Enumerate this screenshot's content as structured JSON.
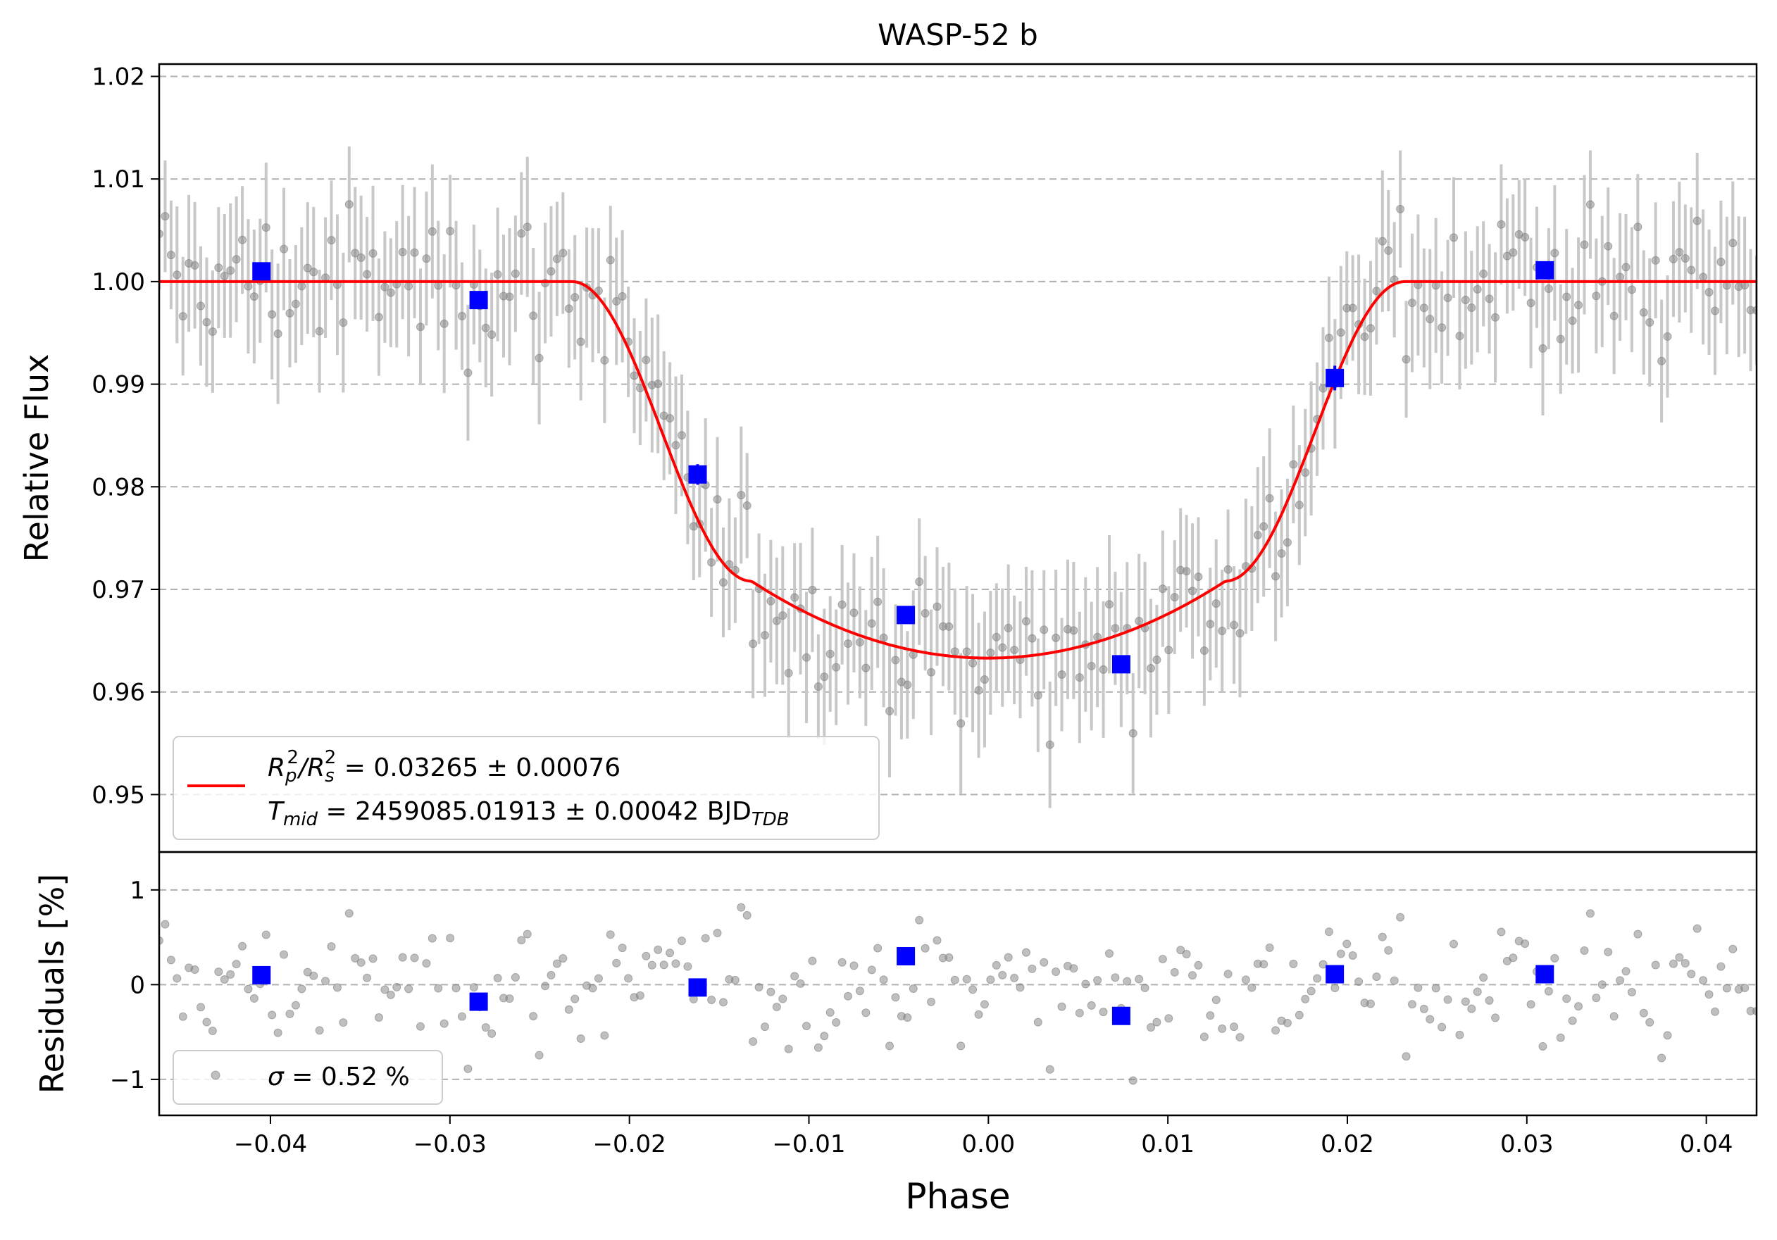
{
  "chart_data": [
    {
      "type": "scatter",
      "panel": "transit",
      "title": "WASP-52 b",
      "xlabel": "",
      "ylabel": "Relative Flux",
      "xlim": [
        -0.0462,
        0.0428
      ],
      "ylim": [
        0.9444,
        1.0212
      ],
      "grid": "horizontal dashed",
      "yticks": [
        0.95,
        0.96,
        0.97,
        0.98,
        0.99,
        1.0,
        1.01,
        1.02
      ],
      "ytick_labels": [
        "0.95",
        "0.96",
        "0.97",
        "0.98",
        "0.99",
        "1.00",
        "1.01",
        "1.02"
      ],
      "model": {
        "name": "transit model",
        "color": "#ff0000",
        "baseline": 1.0,
        "depth": 0.0367,
        "t_contact_outer": 0.0232,
        "t_contact_inner": 0.0132,
        "flux_at_inner_contact": 0.9708
      },
      "raw_data": {
        "color": "#808080",
        "x_start": -0.0462,
        "x_end": 0.0428,
        "count": 270,
        "typical_error": 0.006
      },
      "binned": {
        "color": "#0000ff",
        "x": [
          -0.0405,
          -0.0284,
          -0.0162,
          -0.0046,
          0.0074,
          0.0193,
          0.031
        ],
        "y": [
          1.001,
          0.9982,
          0.9812,
          0.9675,
          0.9627,
          0.9906,
          1.0011
        ],
        "err": [
          0.0005,
          0.0005,
          0.001,
          0.0006,
          0.0005,
          0.0012,
          0.0005
        ]
      },
      "legend": {
        "placement": "lower-left",
        "line1_lhs": "R",
        "line1_sub_p": "p",
        "line1_sup_p": "2",
        "line1_slash": "/",
        "line1_sub_s": "s",
        "line1_sup_s": "2",
        "line1_rhs": " = 0.03265 ± 0.00076",
        "line2_lhs": "T",
        "line2_sub": "mid",
        "line2_rhs": " = 2459085.01913 ± 0.00042 BJD",
        "line2_unit_sub": "TDB"
      }
    },
    {
      "type": "scatter",
      "panel": "residuals",
      "xlabel": "Phase",
      "ylabel": "Residuals [%]",
      "xlim": [
        -0.0462,
        0.0428
      ],
      "ylim": [
        -1.38,
        1.4
      ],
      "grid": "horizontal dashed",
      "xticks": [
        -0.04,
        -0.03,
        -0.02,
        -0.01,
        0.0,
        0.01,
        0.02,
        0.03,
        0.04
      ],
      "xtick_labels": [
        "−0.04",
        "−0.03",
        "−0.02",
        "−0.01",
        "0.00",
        "0.01",
        "0.02",
        "0.03",
        "0.04"
      ],
      "yticks": [
        -1,
        0,
        1
      ],
      "ytick_labels": [
        "−1",
        "0",
        "1"
      ],
      "binned": {
        "x": [
          -0.0405,
          -0.0284,
          -0.0162,
          -0.0046,
          0.0074,
          0.0193,
          0.031
        ],
        "y": [
          0.1,
          -0.18,
          -0.03,
          0.3,
          -0.33,
          0.11,
          0.11
        ]
      },
      "legend": {
        "placement": "lower-left",
        "sigma_symbol": "σ",
        "sigma_text": " = 0.52 %"
      }
    }
  ]
}
